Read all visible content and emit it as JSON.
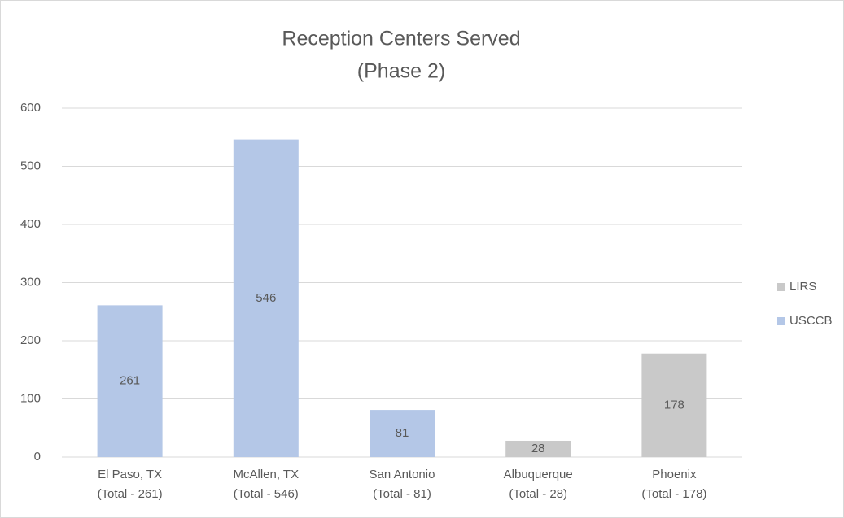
{
  "chart_data": {
    "type": "stacked_bar",
    "title": [
      "Reception Centers Served",
      "(Phase 2)"
    ],
    "categories": [
      [
        "El Paso, TX",
        "(Total - 261)"
      ],
      [
        "McAllen, TX",
        "(Total - 546)"
      ],
      [
        "San Antonio",
        "(Total - 81)"
      ],
      [
        "Albuquerque",
        "(Total - 28)"
      ],
      [
        "Phoenix",
        "(Total - 178)"
      ]
    ],
    "series": [
      {
        "name": "USCCB",
        "color": "#b4c7e7",
        "values": [
          261,
          546,
          81,
          null,
          null
        ]
      },
      {
        "name": "LIRS",
        "color": "#c9c9c9",
        "values": [
          null,
          null,
          null,
          28,
          178
        ]
      }
    ],
    "ylim": [
      0,
      600
    ],
    "yticks": [
      0,
      100,
      200,
      300,
      400,
      500,
      600
    ],
    "grid": true,
    "legend": "right"
  }
}
